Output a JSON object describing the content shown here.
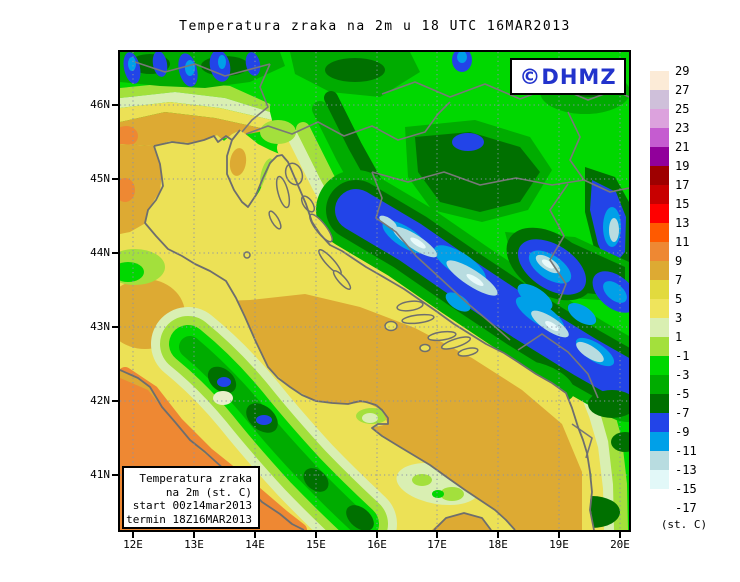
{
  "title": "Temperatura zraka na 2m u 18 UTC 16MAR2013",
  "watermark": {
    "text": "©DHMZ",
    "color": "#2233cc"
  },
  "info_box": {
    "lines": [
      "Temperatura zraka",
      "na 2m (st. C)",
      "start 00z14mar2013",
      "termin 18Z16MAR2013"
    ]
  },
  "axes": {
    "x_ticks": [
      "12E",
      "13E",
      "14E",
      "15E",
      "16E",
      "17E",
      "18E",
      "19E",
      "20E"
    ],
    "y_ticks": [
      "46N",
      "45N",
      "44N",
      "43N",
      "42N",
      "41N"
    ]
  },
  "colorbar": {
    "unit_label": "(st. C)",
    "boundary_labels": [
      "29",
      "27",
      "25",
      "23",
      "21",
      "19",
      "17",
      "15",
      "13",
      "11",
      "9",
      "7",
      "5",
      "3",
      "1",
      "-1",
      "-3",
      "-5",
      "-7",
      "-9",
      "-11",
      "-13",
      "-15",
      "-17"
    ],
    "swatch_colors_top_to_bottom": [
      "#FCEBD7",
      "#CFC0DA",
      "#DCA2DD",
      "#C55CD0",
      "#91009B",
      "#9E0000",
      "#C80000",
      "#FF0000",
      "#FF5A00",
      "#EE8833",
      "#DDAA33",
      "#E2DA3E",
      "#EFE45C",
      "#D9EFB2",
      "#A3E03C",
      "#00D800",
      "#00AC00",
      "#007000",
      "#2244E8",
      "#00A0E8",
      "#B8DCE0",
      "#E2F8F8",
      "#FFFFFF"
    ]
  },
  "map_palette": {
    "sea_mild_yellow": "#ECE156",
    "sea_warm_golden": "#DDAA33",
    "sea_hot_orange": "#EE8833",
    "land_green": "#00D800",
    "land_green_mid": "#00AC00",
    "land_green_dark": "#007000",
    "mountain_blue": "#2244E8",
    "mountain_sky": "#00A0E8",
    "mountain_pale": "#B8DCE0",
    "coastline_gray": "#6E6E6E",
    "border_gray": "#787878",
    "grid_gray_blue": "#8A92A8"
  }
}
